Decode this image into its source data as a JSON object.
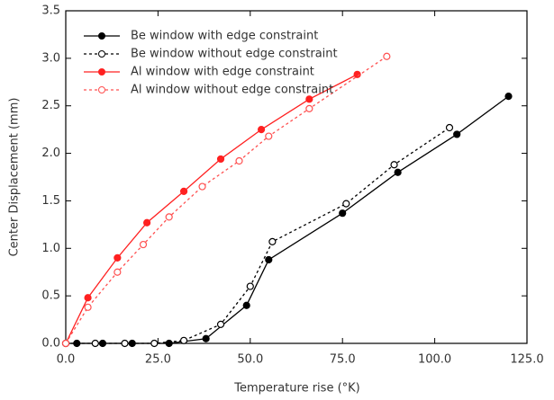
{
  "chart_data": {
    "type": "line",
    "xlabel": "Temperature rise (°K)",
    "ylabel": "Center Displacement (mm)",
    "xlim": [
      0,
      125
    ],
    "xticks": [
      {
        "value": 0,
        "label": "0.0"
      },
      {
        "value": 25,
        "label": "25.0"
      },
      {
        "value": 50,
        "label": "50.0"
      },
      {
        "value": 75,
        "label": "75.0"
      },
      {
        "value": 100,
        "label": "100.0"
      },
      {
        "value": 125,
        "label": "125.0"
      }
    ],
    "ylim": [
      0,
      3.5
    ],
    "yticks": [
      {
        "value": 0,
        "label": "0.0"
      },
      0.5,
      {
        "value": 1,
        "label": "1.0"
      },
      1.5,
      {
        "value": 2,
        "label": "2.0"
      },
      2.5,
      {
        "value": 3,
        "label": "3.0"
      },
      3.5
    ],
    "legend": "upper left",
    "series": [
      {
        "name": "Be window with edge constraint",
        "color": "#000000",
        "linestyle": "solid",
        "marker": "filled",
        "x": [
          0,
          3,
          10,
          18,
          28,
          38,
          49,
          55,
          75,
          90,
          106,
          120
        ],
        "values": [
          0,
          0,
          0,
          0,
          0,
          0.05,
          0.4,
          0.88,
          1.37,
          1.8,
          2.2,
          2.6
        ]
      },
      {
        "name": "Be window without edge constraint",
        "color": "#000000",
        "linestyle": "dashed",
        "marker": "open",
        "x": [
          0,
          8,
          16,
          24,
          32,
          42,
          50,
          56,
          76,
          89,
          104
        ],
        "values": [
          0,
          0,
          0,
          0,
          0.03,
          0.2,
          0.6,
          1.07,
          1.47,
          1.88,
          2.27
        ]
      },
      {
        "name": "Al window with edge constraint",
        "color": "#ff2020",
        "linestyle": "solid",
        "marker": "filled",
        "x": [
          0,
          6,
          14,
          22,
          32,
          42,
          53,
          66,
          79
        ],
        "values": [
          0,
          0.48,
          0.9,
          1.27,
          1.6,
          1.94,
          2.25,
          2.57,
          2.83
        ]
      },
      {
        "name": "Al window without edge constraint",
        "color": "#ff5050",
        "linestyle": "dashed",
        "marker": "open",
        "x": [
          0,
          6,
          14,
          21,
          28,
          37,
          47,
          55,
          66,
          87
        ],
        "values": [
          0,
          0.38,
          0.75,
          1.04,
          1.33,
          1.65,
          1.92,
          2.18,
          2.47,
          3.02
        ]
      }
    ]
  }
}
